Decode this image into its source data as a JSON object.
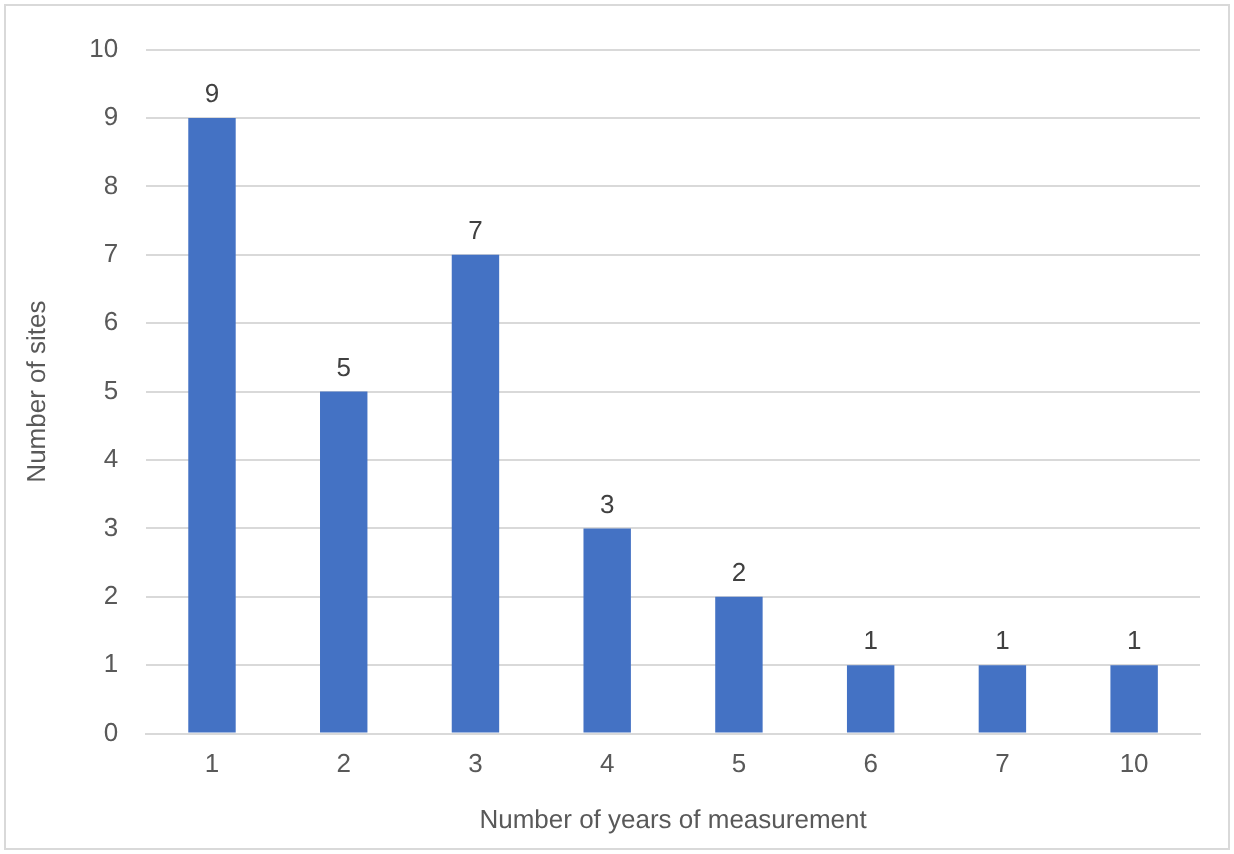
{
  "chart_data": {
    "type": "bar",
    "xlabel": "Number of years of measurement",
    "ylabel": "Number of sites",
    "categories": [
      "1",
      "2",
      "3",
      "4",
      "5",
      "6",
      "7",
      "10"
    ],
    "values": [
      9,
      5,
      7,
      3,
      2,
      1,
      1,
      1
    ],
    "color": "#4472c4",
    "ylim": [
      0,
      10
    ],
    "yticks": [
      0,
      1,
      2,
      3,
      4,
      5,
      6,
      7,
      8,
      9,
      10
    ],
    "grid": "y",
    "data_labels": true
  }
}
